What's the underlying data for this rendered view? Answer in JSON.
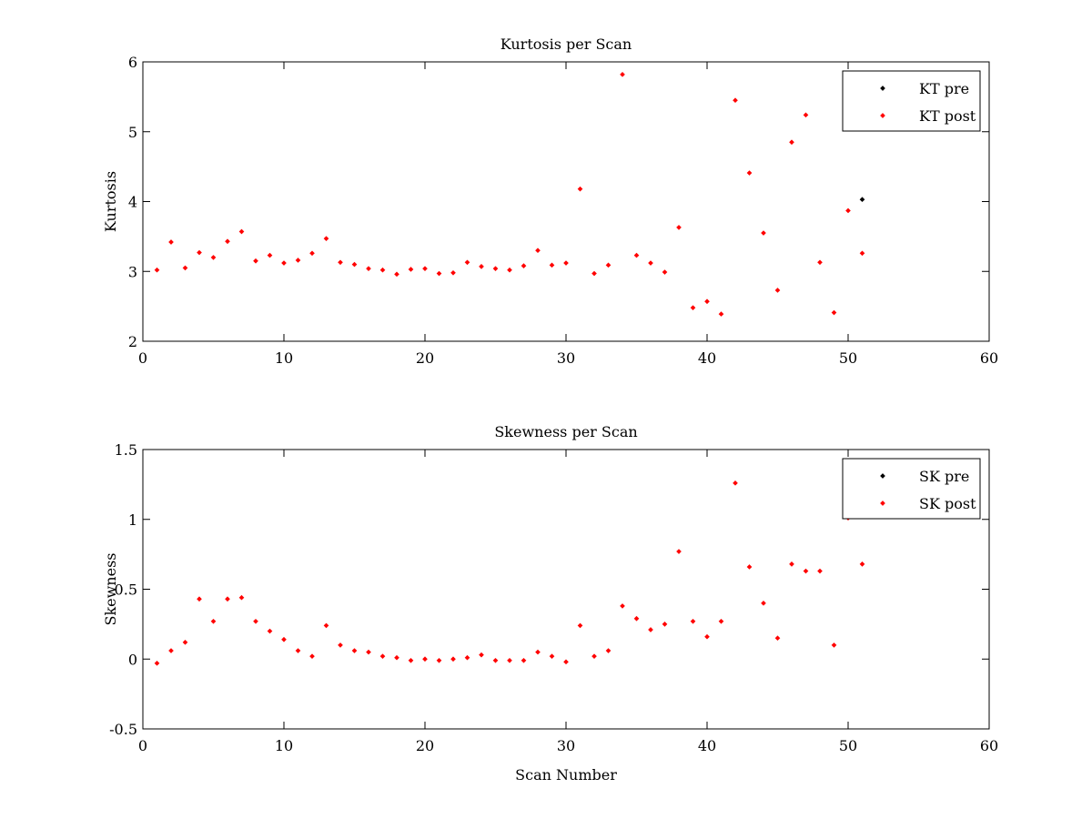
{
  "chart_data": [
    {
      "type": "scatter",
      "title": "Kurtosis per Scan",
      "xlabel": "",
      "ylabel": "Kurtosis",
      "xlim": [
        0,
        60
      ],
      "ylim": [
        2,
        6
      ],
      "xticks": [
        0,
        10,
        20,
        30,
        40,
        50,
        60
      ],
      "yticks": [
        2,
        3,
        4,
        5,
        6
      ],
      "xtick_labels": [
        "0",
        "10",
        "20",
        "30",
        "40",
        "50",
        "60"
      ],
      "ytick_labels": [
        "2",
        "3",
        "4",
        "5",
        "6"
      ],
      "grid": false,
      "legend_position": "top-right",
      "series": [
        {
          "name": "KT pre",
          "color": "#000000",
          "x": [
            51
          ],
          "y": [
            4.03
          ]
        },
        {
          "name": "KT post",
          "color": "#ff0000",
          "x": [
            1,
            2,
            3,
            4,
            5,
            6,
            7,
            8,
            9,
            10,
            11,
            12,
            13,
            14,
            15,
            16,
            17,
            18,
            19,
            20,
            21,
            22,
            23,
            24,
            25,
            26,
            27,
            28,
            29,
            30,
            31,
            32,
            33,
            34,
            35,
            36,
            37,
            38,
            39,
            40,
            41,
            42,
            43,
            44,
            45,
            46,
            47,
            48,
            49,
            50,
            51
          ],
          "y": [
            3.02,
            3.42,
            3.05,
            3.27,
            3.2,
            3.43,
            3.57,
            3.15,
            3.23,
            3.12,
            3.16,
            3.26,
            3.47,
            3.13,
            3.1,
            3.04,
            3.02,
            2.96,
            3.03,
            3.04,
            2.97,
            2.98,
            3.13,
            3.07,
            3.04,
            3.02,
            3.08,
            3.3,
            3.09,
            3.12,
            4.18,
            2.97,
            3.09,
            5.82,
            3.23,
            3.12,
            2.99,
            3.63,
            2.48,
            2.57,
            2.39,
            5.45,
            4.41,
            3.55,
            2.73,
            4.85,
            5.24,
            3.13,
            2.41,
            3.87,
            3.26
          ]
        }
      ]
    },
    {
      "type": "scatter",
      "title": "Skewness per Scan",
      "xlabel": "Scan Number",
      "ylabel": "Skewness",
      "xlim": [
        0,
        60
      ],
      "ylim": [
        -0.5,
        1.5
      ],
      "xticks": [
        0,
        10,
        20,
        30,
        40,
        50,
        60
      ],
      "yticks": [
        -0.5,
        0,
        0.5,
        1,
        1.5
      ],
      "xtick_labels": [
        "0",
        "10",
        "20",
        "30",
        "40",
        "50",
        "60"
      ],
      "ytick_labels": [
        "-0.5",
        "0",
        "0.5",
        "1",
        "1.5"
      ],
      "grid": false,
      "legend_position": "top-right",
      "series": [
        {
          "name": "SK pre",
          "color": "#000000",
          "x": [],
          "y": []
        },
        {
          "name": "SK post",
          "color": "#ff0000",
          "x": [
            1,
            2,
            3,
            4,
            5,
            6,
            7,
            8,
            9,
            10,
            11,
            12,
            13,
            14,
            15,
            16,
            17,
            18,
            19,
            20,
            21,
            22,
            23,
            24,
            25,
            26,
            27,
            28,
            29,
            30,
            31,
            32,
            33,
            34,
            35,
            36,
            37,
            38,
            39,
            40,
            41,
            42,
            43,
            44,
            45,
            46,
            47,
            48,
            49,
            50,
            51
          ],
          "y": [
            -0.03,
            0.06,
            0.12,
            0.43,
            0.27,
            0.43,
            0.44,
            0.27,
            0.2,
            0.14,
            0.06,
            0.02,
            0.24,
            0.1,
            0.06,
            0.05,
            0.02,
            0.01,
            -0.01,
            0.0,
            -0.01,
            0.0,
            0.01,
            0.03,
            -0.01,
            -0.01,
            -0.01,
            0.05,
            0.02,
            -0.02,
            0.24,
            0.02,
            0.06,
            0.38,
            0.29,
            0.21,
            0.25,
            0.77,
            0.27,
            0.16,
            0.27,
            1.26,
            0.66,
            0.4,
            0.15,
            0.68,
            0.63,
            0.63,
            0.1,
            1.01,
            0.68
          ]
        }
      ]
    }
  ]
}
